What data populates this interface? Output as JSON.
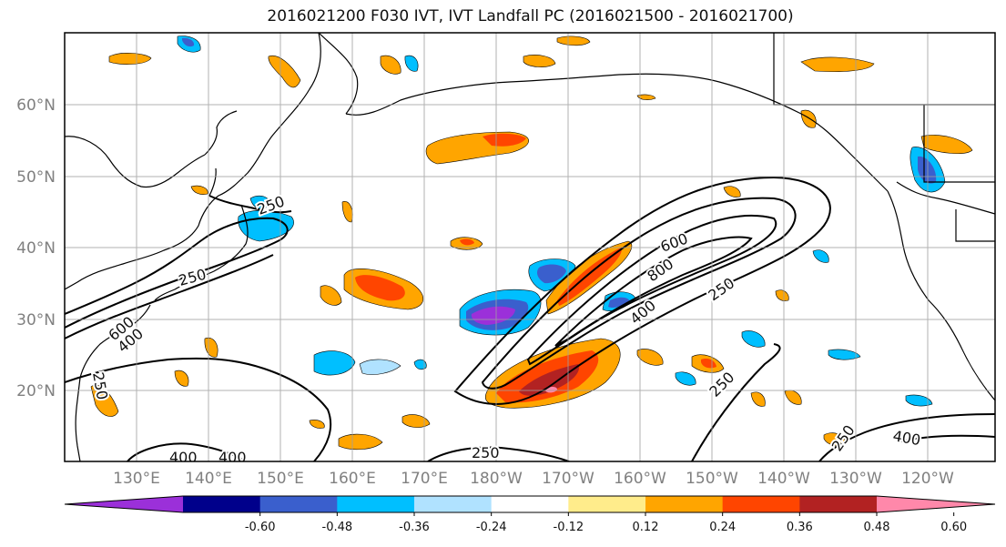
{
  "title": "2016021200 F030 IVT, IVT Landfall PC (2016021500 - 2016021700)",
  "lat_labels": [
    "60°N",
    "50°N",
    "40°N",
    "30°N",
    "20°N"
  ],
  "lon_labels": [
    "130°E",
    "140°E",
    "150°E",
    "160°E",
    "170°E",
    "180°W",
    "170°W",
    "160°W",
    "150°W",
    "140°W",
    "130°W",
    "120°W"
  ],
  "contour_labels": [
    "250",
    "250",
    "600",
    "400",
    "250",
    "600",
    "800",
    "400",
    "250",
    "250",
    "250",
    "400",
    "400",
    "400",
    "250"
  ],
  "colorbar": {
    "ticks": [
      "-0.60",
      "-0.48",
      "-0.36",
      "-0.24",
      "-0.12",
      "0.12",
      "0.24",
      "0.36",
      "0.48",
      "0.60"
    ],
    "colors": [
      "#9b30d9",
      "#00008b",
      "#3a5fcd",
      "#00bfff",
      "#b0e2ff",
      "#ffffff",
      "#ffec8b",
      "#ffa500",
      "#ff4500",
      "#b22222",
      "#ff88aa"
    ]
  }
}
